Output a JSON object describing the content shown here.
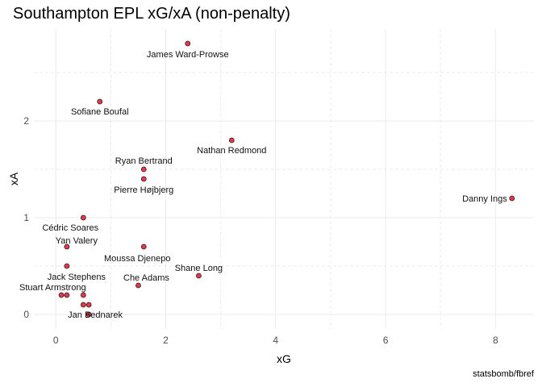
{
  "caption": "statsbomb/fbref",
  "colors": {
    "point_fill": "#e8364a",
    "point_stroke": "#222222",
    "grid_major": "#ebebeb",
    "grid_minor": "#ebebeb"
  },
  "chart_data": {
    "type": "scatter",
    "title": "Southampton EPL xG/xA (non-penalty)",
    "xlabel": "xG",
    "ylabel": "xA",
    "xlim": [
      -0.4,
      8.7
    ],
    "ylim": [
      -0.15,
      2.95
    ],
    "xticks": [
      "0",
      "2",
      "4",
      "6",
      "8"
    ],
    "yticks": [
      "0",
      "1",
      "2"
    ],
    "grid": true,
    "points": [
      {
        "label": "James Ward-Prowse",
        "x": 2.4,
        "y": 2.8
      },
      {
        "label": "Sofiane Boufal",
        "x": 0.8,
        "y": 2.2
      },
      {
        "label": "Nathan Redmond",
        "x": 3.2,
        "y": 1.8
      },
      {
        "label": "Ryan Bertrand",
        "x": 1.6,
        "y": 1.5
      },
      {
        "label": "Pierre Højbjerg",
        "x": 1.6,
        "y": 1.4
      },
      {
        "label": "Danny Ings",
        "x": 8.3,
        "y": 1.2
      },
      {
        "label": "Cédric Soares",
        "x": 0.5,
        "y": 1.0
      },
      {
        "label": "Yan Valery",
        "x": 0.2,
        "y": 0.7
      },
      {
        "label": "Moussa Djenepo",
        "x": 1.6,
        "y": 0.7
      },
      {
        "label": "Jack Stephens",
        "x": 0.2,
        "y": 0.5
      },
      {
        "label": "Shane Long",
        "x": 2.6,
        "y": 0.4
      },
      {
        "label": "Che Adams",
        "x": 1.5,
        "y": 0.3
      },
      {
        "label": "Stuart Armstrong",
        "x": 0.5,
        "y": 0.2
      },
      {
        "label": "",
        "x": 0.1,
        "y": 0.2
      },
      {
        "label": "",
        "x": 0.2,
        "y": 0.2
      },
      {
        "label": "",
        "x": 0.5,
        "y": 0.1
      },
      {
        "label": "",
        "x": 0.6,
        "y": 0.1
      },
      {
        "label": "Jan Bednarek",
        "x": 0.6,
        "y": 0.0
      }
    ]
  }
}
